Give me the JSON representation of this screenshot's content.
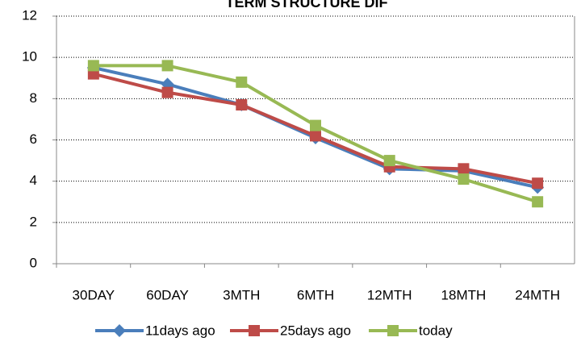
{
  "chart_data": {
    "type": "line",
    "title": "TERM STRUCTURE DIF",
    "categories": [
      "30DAY",
      "60DAY",
      "3MTH",
      "6MTH",
      "12MTH",
      "18MTH",
      "24MTH"
    ],
    "series": [
      {
        "name": "11days ago",
        "color": "#4a7ebb",
        "marker": "diamond",
        "values": [
          9.5,
          8.7,
          7.7,
          6.1,
          4.6,
          4.5,
          3.7
        ]
      },
      {
        "name": "25days ago",
        "color": "#be4b48",
        "marker": "square",
        "values": [
          9.2,
          8.3,
          7.7,
          6.2,
          4.7,
          4.6,
          3.9
        ]
      },
      {
        "name": "today",
        "color": "#98b954",
        "marker": "square",
        "values": [
          9.6,
          9.6,
          8.8,
          6.7,
          5.0,
          4.1,
          3.0
        ]
      }
    ],
    "ylim": [
      0,
      12
    ],
    "yticks": [
      0,
      2,
      4,
      6,
      8,
      10,
      12
    ],
    "grid": true,
    "legend": "bottom"
  }
}
